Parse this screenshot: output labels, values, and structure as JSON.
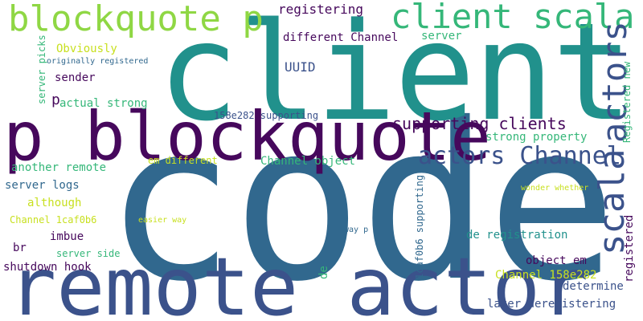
{
  "palette": {
    "purple": "#46085c",
    "indigo": "#3b528b",
    "blue": "#31688e",
    "teal": "#21918c",
    "green": "#35b779",
    "lime": "#8fd744",
    "yellow": "#c8e020"
  },
  "words": [
    {
      "text": "code"
    },
    {
      "text": "client"
    },
    {
      "text": "remote actor"
    },
    {
      "text": "p blockquote"
    },
    {
      "text": "blockquote p"
    },
    {
      "text": "client scala"
    },
    {
      "text": "scala"
    },
    {
      "text": "actors"
    },
    {
      "text": "actors Channel"
    },
    {
      "text": "supporting clients"
    },
    {
      "text": "registering"
    },
    {
      "text": "different Channel"
    },
    {
      "text": "server"
    },
    {
      "text": "Obviously"
    },
    {
      "text": "originally registered"
    },
    {
      "text": "sender"
    },
    {
      "text": "server picks"
    },
    {
      "text": "UUID"
    },
    {
      "text": "p"
    },
    {
      "text": "actual strong"
    },
    {
      "text": "158e282 supporting"
    },
    {
      "text": "Registered new"
    },
    {
      "text": "strong property"
    },
    {
      "text": "another remote"
    },
    {
      "text": "em different"
    },
    {
      "text": "Channel object"
    },
    {
      "text": "server logs"
    },
    {
      "text": "although"
    },
    {
      "text": "Channel 1caf0b6"
    },
    {
      "text": "easier way"
    },
    {
      "text": "imbue"
    },
    {
      "text": "br"
    },
    {
      "text": "server side"
    },
    {
      "text": "shutdown hook"
    },
    {
      "text": "de"
    },
    {
      "text": "1caf0b6 supporting"
    },
    {
      "text": "way p"
    },
    {
      "text": "de registration"
    },
    {
      "text": "object em"
    },
    {
      "text": "Channel 158e282"
    },
    {
      "text": "determine"
    },
    {
      "text": "later deregistering"
    },
    {
      "text": "wonder whether"
    },
    {
      "text": "registered"
    }
  ]
}
